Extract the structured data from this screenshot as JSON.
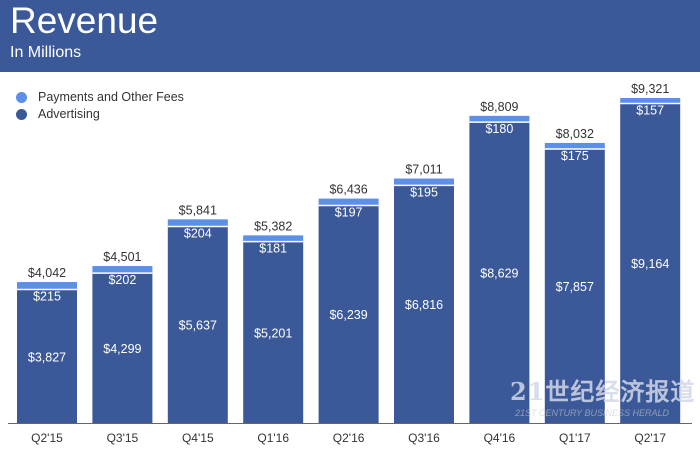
{
  "chart_data": {
    "type": "bar",
    "stacked": true,
    "title": "Revenue",
    "subtitle": "In Millions",
    "categories": [
      "Q2'15",
      "Q3'15",
      "Q4'15",
      "Q1'16",
      "Q2'16",
      "Q3'16",
      "Q4'16",
      "Q1'17",
      "Q2'17"
    ],
    "series": [
      {
        "name": "Advertising",
        "color": "#3b5998",
        "values": [
          3827,
          4299,
          5637,
          5201,
          6239,
          6816,
          8629,
          7857,
          9164
        ]
      },
      {
        "name": "Payments and Other Fees",
        "color": "#5b8fe8",
        "values": [
          215,
          202,
          204,
          181,
          197,
          195,
          180,
          175,
          157
        ]
      }
    ],
    "totals": [
      4042,
      4501,
      5841,
      5382,
      6436,
      7011,
      8809,
      8032,
      9321
    ],
    "legend_position": "top-left",
    "grid": false,
    "ylim": [
      0,
      9321
    ]
  },
  "legend": [
    {
      "label": "Payments and Other Fees",
      "color": "#5b8fe8"
    },
    {
      "label": "Advertising",
      "color": "#3b5998"
    }
  ],
  "watermark": {
    "text": "21世纪经济报道",
    "subtext": "21ST CENTURY BUSINESS HERALD"
  }
}
